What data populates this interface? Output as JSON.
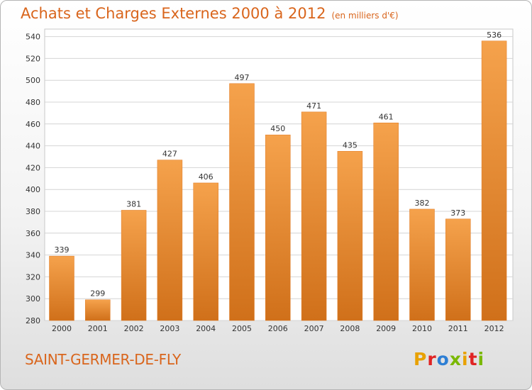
{
  "header": {
    "title": "Achats et Charges Externes 2000 à 2012",
    "subtitle": "(en milliers d'€)"
  },
  "footer": {
    "commune": "SAINT-GERMER-DE-FLY",
    "logo": "Proxiti",
    "logo_colors": [
      "#e8a100",
      "#e02424",
      "#2e7fd4",
      "#7ab800",
      "#e8a100",
      "#e02424",
      "#7ab800"
    ]
  },
  "chart_data": {
    "type": "bar",
    "title": "Achats et Charges Externes 2000 à 2012",
    "subtitle": "(en milliers d'€)",
    "categories": [
      "2000",
      "2001",
      "2002",
      "2003",
      "2004",
      "2005",
      "2006",
      "2007",
      "2008",
      "2009",
      "2010",
      "2011",
      "2012"
    ],
    "values": [
      339,
      299,
      381,
      427,
      406,
      497,
      450,
      471,
      435,
      461,
      382,
      373,
      536
    ],
    "xlabel": "",
    "ylabel": "",
    "ylim": [
      280,
      540
    ],
    "yticks": [
      280,
      300,
      320,
      340,
      360,
      380,
      400,
      420,
      440,
      460,
      480,
      500,
      520,
      540
    ],
    "grid": true,
    "bar_color_top": "#f5a24c",
    "bar_color_bottom": "#d0701a"
  }
}
